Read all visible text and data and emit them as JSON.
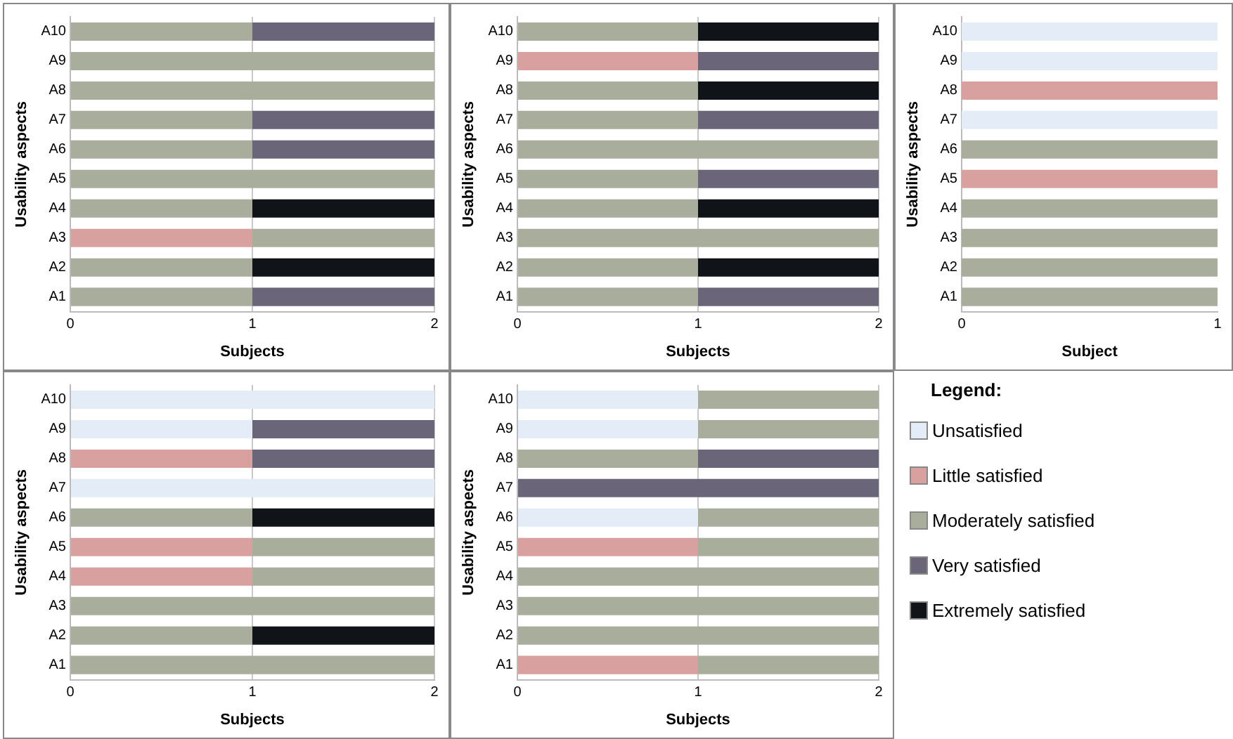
{
  "chart_data": [
    {
      "type": "bar",
      "orientation": "horizontal",
      "stacked": true,
      "xlabel": "Subjects",
      "ylabel": "Usability aspects",
      "categories": [
        "A10",
        "A9",
        "A8",
        "A7",
        "A6",
        "A5",
        "A4",
        "A3",
        "A2",
        "A1"
      ],
      "xlim": [
        0,
        2
      ],
      "xticks": [
        0,
        1,
        2
      ],
      "grid": "x",
      "series": [
        {
          "color": "#e4ecf7",
          "values": [
            0,
            0,
            0,
            0,
            0,
            0,
            0,
            0,
            0,
            0
          ]
        },
        {
          "color": "#d8a09e",
          "values": [
            0,
            0,
            0,
            0,
            0,
            0,
            0,
            1,
            0,
            0
          ]
        },
        {
          "color": "#a9ad9c",
          "values": [
            1,
            2,
            2,
            1,
            1,
            2,
            1,
            1,
            1,
            1
          ]
        },
        {
          "color": "#6a6578",
          "values": [
            1,
            0,
            0,
            1,
            1,
            0,
            0,
            0,
            0,
            1
          ]
        },
        {
          "color": "#101418",
          "values": [
            0,
            0,
            0,
            0,
            0,
            0,
            1,
            0,
            1,
            0
          ]
        }
      ]
    },
    {
      "type": "bar",
      "orientation": "horizontal",
      "stacked": true,
      "xlabel": "Subjects",
      "ylabel": "Usability aspects",
      "categories": [
        "A10",
        "A9",
        "A8",
        "A7",
        "A6",
        "A5",
        "A4",
        "A3",
        "A2",
        "A1"
      ],
      "xlim": [
        0,
        2
      ],
      "xticks": [
        0,
        1,
        2
      ],
      "grid": "x",
      "series": [
        {
          "color": "#e4ecf7",
          "values": [
            0,
            0,
            0,
            0,
            0,
            0,
            0,
            0,
            0,
            0
          ]
        },
        {
          "color": "#d8a09e",
          "values": [
            0,
            1,
            0,
            0,
            0,
            0,
            0,
            0,
            0,
            0
          ]
        },
        {
          "color": "#a9ad9c",
          "values": [
            1,
            0,
            1,
            1,
            2,
            1,
            1,
            2,
            1,
            1
          ]
        },
        {
          "color": "#6a6578",
          "values": [
            0,
            1,
            0,
            1,
            0,
            1,
            0,
            0,
            0,
            1
          ]
        },
        {
          "color": "#101418",
          "values": [
            1,
            0,
            1,
            0,
            0,
            0,
            1,
            0,
            1,
            0
          ]
        }
      ]
    },
    {
      "type": "bar",
      "orientation": "horizontal",
      "stacked": true,
      "xlabel": "Subject",
      "ylabel": "Usability aspects",
      "categories": [
        "A10",
        "A9",
        "A8",
        "A7",
        "A6",
        "A5",
        "A4",
        "A3",
        "A2",
        "A1"
      ],
      "xlim": [
        0,
        1
      ],
      "xticks": [
        0,
        1
      ],
      "series": [
        {
          "color": "#e4ecf7",
          "values": [
            1,
            1,
            0,
            1,
            0,
            0,
            0,
            0,
            0,
            0
          ]
        },
        {
          "color": "#d8a09e",
          "values": [
            0,
            0,
            1,
            0,
            0,
            1,
            0,
            0,
            0,
            0
          ]
        },
        {
          "color": "#a9ad9c",
          "values": [
            0,
            0,
            0,
            0,
            1,
            0,
            1,
            1,
            1,
            1
          ]
        },
        {
          "color": "#6a6578",
          "values": [
            0,
            0,
            0,
            0,
            0,
            0,
            0,
            0,
            0,
            0
          ]
        },
        {
          "color": "#101418",
          "values": [
            0,
            0,
            0,
            0,
            0,
            0,
            0,
            0,
            0,
            0
          ]
        }
      ]
    },
    {
      "type": "bar",
      "orientation": "horizontal",
      "stacked": true,
      "xlabel": "Subjects",
      "ylabel": "Usability aspects",
      "categories": [
        "A10",
        "A9",
        "A8",
        "A7",
        "A6",
        "A5",
        "A4",
        "A3",
        "A2",
        "A1"
      ],
      "xlim": [
        0,
        2
      ],
      "xticks": [
        0,
        1,
        2
      ],
      "grid": "x",
      "series": [
        {
          "color": "#e4ecf7",
          "values": [
            2,
            1,
            0,
            2,
            0,
            0,
            0,
            0,
            0,
            0
          ]
        },
        {
          "color": "#d8a09e",
          "values": [
            0,
            0,
            1,
            0,
            0,
            1,
            1,
            0,
            0,
            0
          ]
        },
        {
          "color": "#a9ad9c",
          "values": [
            0,
            0,
            0,
            0,
            1,
            1,
            1,
            2,
            1,
            2
          ]
        },
        {
          "color": "#6a6578",
          "values": [
            0,
            1,
            1,
            0,
            0,
            0,
            0,
            0,
            0,
            0
          ]
        },
        {
          "color": "#101418",
          "values": [
            0,
            0,
            0,
            0,
            1,
            0,
            0,
            0,
            1,
            0
          ]
        }
      ]
    },
    {
      "type": "bar",
      "orientation": "horizontal",
      "stacked": true,
      "xlabel": "Subjects",
      "ylabel": "Usability aspects",
      "categories": [
        "A10",
        "A9",
        "A8",
        "A7",
        "A6",
        "A5",
        "A4",
        "A3",
        "A2",
        "A1"
      ],
      "xlim": [
        0,
        2
      ],
      "xticks": [
        0,
        1,
        2
      ],
      "grid": "x",
      "legend": "right",
      "legend_title": "Legend:",
      "series": [
        {
          "name": "Unsatisfied",
          "color": "#e4ecf7",
          "values": [
            1,
            1,
            0,
            0,
            1,
            0,
            0,
            0,
            0,
            0
          ]
        },
        {
          "name": "Little satisfied",
          "color": "#d8a09e",
          "values": [
            0,
            0,
            0,
            0,
            0,
            1,
            0,
            0,
            0,
            1
          ]
        },
        {
          "name": "Moderately satisfied",
          "color": "#a9ad9c",
          "values": [
            1,
            1,
            1,
            0,
            1,
            1,
            2,
            2,
            2,
            1
          ]
        },
        {
          "name": "Very satisfied",
          "color": "#6a6578",
          "values": [
            0,
            0,
            1,
            2,
            0,
            0,
            0,
            0,
            0,
            0
          ]
        },
        {
          "name": "Extremely satisfied",
          "color": "#101418",
          "values": [
            0,
            0,
            0,
            0,
            0,
            0,
            0,
            0,
            0,
            0
          ]
        }
      ]
    }
  ]
}
